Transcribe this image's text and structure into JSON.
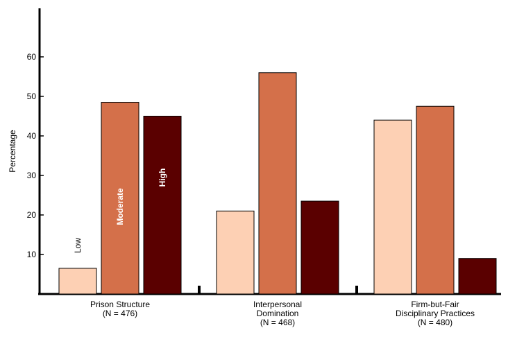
{
  "chart_data": {
    "type": "bar",
    "title": "",
    "xlabel": "",
    "ylabel": "Percentage",
    "ylim": [
      0,
      60
    ],
    "yticks": [
      10,
      20,
      30,
      40,
      50,
      60
    ],
    "grid": false,
    "legend": "none",
    "categories": [
      {
        "lines": [
          "Prison Structure",
          "(N = 476)"
        ]
      },
      {
        "lines": [
          "Interpersonal",
          "Domination",
          "(N = 468)"
        ]
      },
      {
        "lines": [
          "Firm-but-Fair",
          "Disciplinary Practices",
          "(N = 480)"
        ]
      }
    ],
    "series": [
      {
        "name": "Low",
        "color": "#fdd0b4",
        "values": [
          6.5,
          21,
          44
        ]
      },
      {
        "name": "Moderate",
        "color": "#d4704a",
        "values": [
          48.5,
          56,
          47.5
        ]
      },
      {
        "name": "High",
        "color": "#5a0000",
        "values": [
          45,
          23.5,
          9
        ]
      }
    ]
  }
}
